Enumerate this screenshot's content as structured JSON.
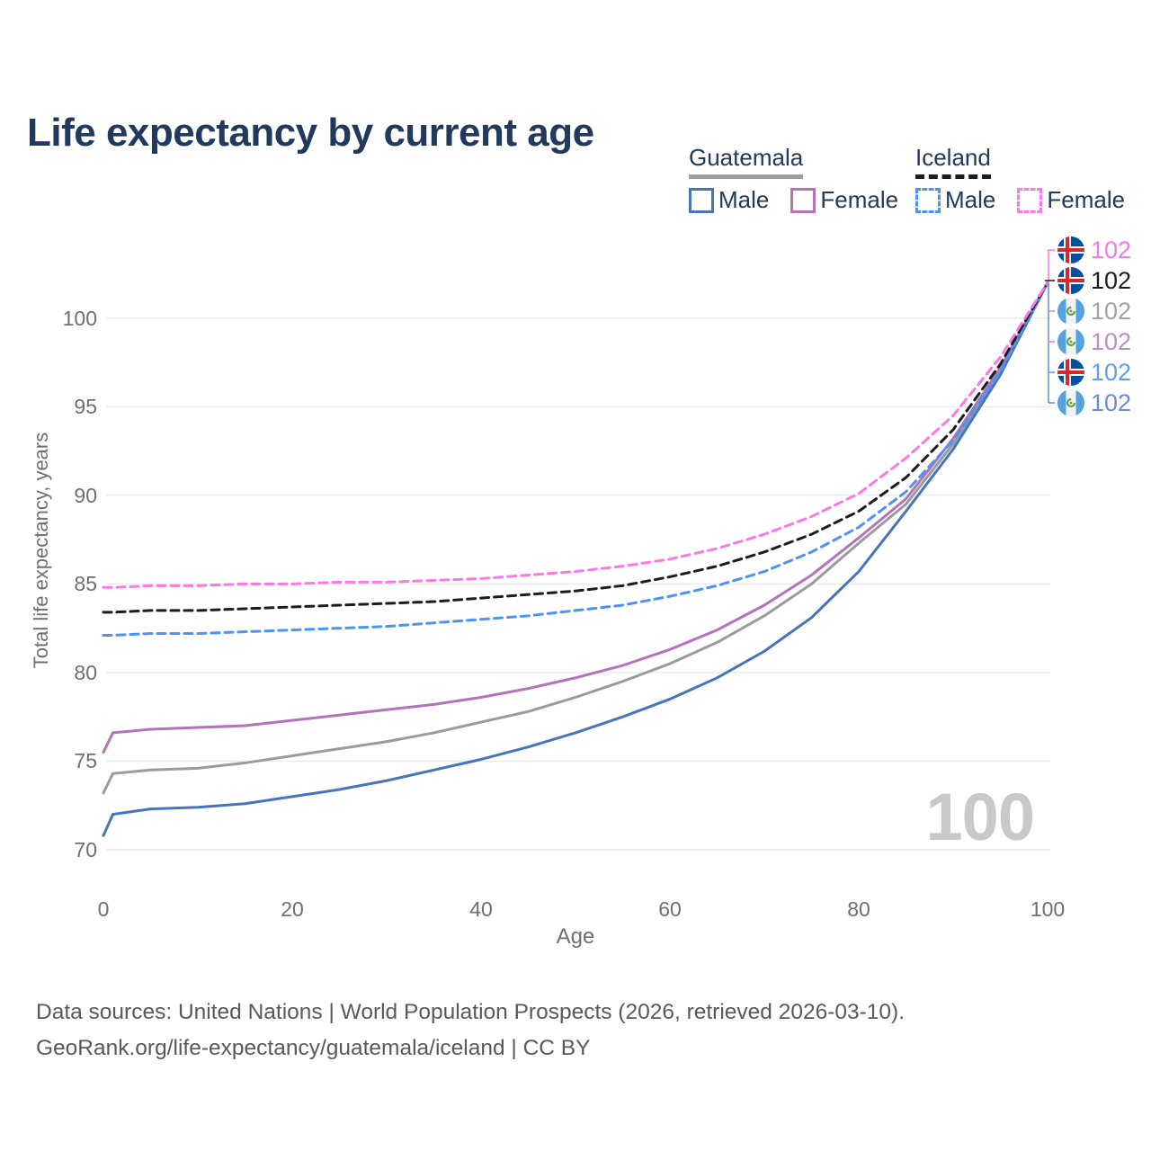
{
  "title": {
    "text": "Life expectancy by current age",
    "color": "#21395c"
  },
  "legend": {
    "groups": [
      {
        "name": "Guatemala",
        "underline_style": "solid",
        "underline_color": "#9e9e9e",
        "items": [
          {
            "label": "Male",
            "color": "#4674bd",
            "style": "solid"
          },
          {
            "label": "Female",
            "color": "#b273ba",
            "style": "solid"
          }
        ]
      },
      {
        "name": "Iceland",
        "underline_style": "dashed",
        "underline_color": "#1c1c1c",
        "items": [
          {
            "label": "Male",
            "color": "#4b93f5",
            "style": "dashed"
          },
          {
            "label": "Female",
            "color": "#fa79e4",
            "style": "dashed"
          }
        ]
      }
    ]
  },
  "chart_data": {
    "type": "line",
    "title": "Life expectancy by current age",
    "xlabel": "Age",
    "ylabel": "Total life expectancy, years",
    "xlim": [
      0,
      100
    ],
    "ylim": [
      70,
      102.5
    ],
    "xticks": [
      0,
      20,
      40,
      60,
      80,
      100
    ],
    "yticks": [
      70,
      75,
      80,
      85,
      90,
      95,
      100
    ],
    "grid": "horizontal",
    "legend_position": "top-right",
    "age_watermark": "100",
    "x": [
      0,
      1,
      5,
      10,
      15,
      20,
      25,
      30,
      35,
      40,
      45,
      50,
      55,
      60,
      65,
      70,
      75,
      80,
      85,
      90,
      95,
      100
    ],
    "series": [
      {
        "name": "Guatemala Male",
        "country": "guatemala",
        "sex": "male",
        "style": "solid",
        "color": "#4674bd",
        "values": [
          70.8,
          72.0,
          72.3,
          72.4,
          72.6,
          73.0,
          73.4,
          73.9,
          74.5,
          75.1,
          75.8,
          76.6,
          77.5,
          78.5,
          79.7,
          81.2,
          83.1,
          85.7,
          89.1,
          92.6,
          96.8,
          102
        ]
      },
      {
        "name": "Guatemala Total",
        "country": "guatemala",
        "sex": "total",
        "style": "solid",
        "color": "#9b9b9b",
        "values": [
          73.2,
          74.3,
          74.5,
          74.6,
          74.9,
          75.3,
          75.7,
          76.1,
          76.6,
          77.2,
          77.8,
          78.6,
          79.5,
          80.5,
          81.7,
          83.2,
          85.0,
          87.3,
          89.5,
          92.9,
          97.0,
          102
        ]
      },
      {
        "name": "Guatemala Female",
        "country": "guatemala",
        "sex": "female",
        "style": "solid",
        "color": "#b273ba",
        "values": [
          75.5,
          76.6,
          76.8,
          76.9,
          77.0,
          77.3,
          77.6,
          77.9,
          78.2,
          78.6,
          79.1,
          79.7,
          80.4,
          81.3,
          82.4,
          83.8,
          85.5,
          87.6,
          89.8,
          93.2,
          97.2,
          102
        ]
      },
      {
        "name": "Iceland Male",
        "country": "iceland",
        "sex": "male",
        "style": "dashed",
        "color": "#4b93f5",
        "values": [
          82.1,
          82.1,
          82.2,
          82.2,
          82.3,
          82.4,
          82.5,
          82.6,
          82.8,
          83.0,
          83.2,
          83.5,
          83.8,
          84.3,
          84.9,
          85.7,
          86.8,
          88.2,
          90.2,
          93.1,
          97.0,
          102
        ]
      },
      {
        "name": "Iceland Total",
        "country": "iceland",
        "sex": "total",
        "style": "dashed",
        "color": "#1c1c1c",
        "values": [
          83.4,
          83.4,
          83.5,
          83.5,
          83.6,
          83.7,
          83.8,
          83.9,
          84.0,
          84.2,
          84.4,
          84.6,
          84.9,
          85.4,
          86.0,
          86.8,
          87.8,
          89.1,
          91.0,
          93.7,
          97.4,
          102
        ]
      },
      {
        "name": "Iceland Female",
        "country": "iceland",
        "sex": "female",
        "style": "dashed",
        "color": "#fa79e4",
        "values": [
          84.8,
          84.8,
          84.9,
          84.9,
          85.0,
          85.0,
          85.1,
          85.1,
          85.2,
          85.3,
          85.5,
          85.7,
          86.0,
          86.4,
          87.0,
          87.8,
          88.8,
          90.1,
          92.1,
          94.5,
          97.8,
          102
        ]
      }
    ],
    "end_labels": [
      {
        "flag": "iceland",
        "series": "Iceland Female",
        "value": "102",
        "color": "#fa79e4"
      },
      {
        "flag": "iceland",
        "series": "Iceland Total",
        "value": "102",
        "color": "#1c1c1c"
      },
      {
        "flag": "guatemala",
        "series": "Guatemala Total",
        "value": "102",
        "color": "#a3a3a3"
      },
      {
        "flag": "guatemala",
        "series": "Guatemala Female",
        "value": "102",
        "color": "#c28bc7"
      },
      {
        "flag": "iceland",
        "series": "Iceland Male",
        "value": "102",
        "color": "#5f9cf6"
      },
      {
        "flag": "guatemala",
        "series": "Guatemala Male",
        "value": "102",
        "color": "#6b8cd1"
      }
    ],
    "colors": {
      "grid": "#ececec",
      "tick_text": "#6f6f6f",
      "watermark": "#c9c9c9",
      "iceland_flag_blue": "#0151a0",
      "iceland_flag_red": "#d62832",
      "guatemala_flag_blue": "#54a3e0",
      "guatemala_emblem_green": "#61a050"
    }
  },
  "footer": {
    "line1": "Data sources: United Nations | World Population Prospects (2026, retrieved 2026-03-10).",
    "line2": "GeoRank.org/life-expectancy/guatemala/iceland | CC BY"
  }
}
